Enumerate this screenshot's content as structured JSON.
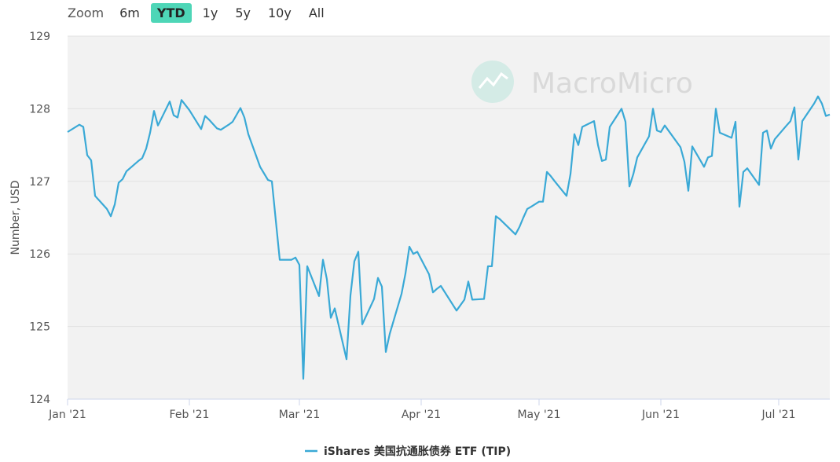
{
  "zoom": {
    "label": "Zoom",
    "buttons": [
      {
        "label": "6m",
        "active": false
      },
      {
        "label": "YTD",
        "active": true
      },
      {
        "label": "1y",
        "active": false
      },
      {
        "label": "5y",
        "active": false
      },
      {
        "label": "10y",
        "active": false
      },
      {
        "label": "All",
        "active": false
      }
    ]
  },
  "watermark": "MacroMicro",
  "colors": {
    "line": "#3aa9d6",
    "plot_bg": "#f2f2f2",
    "zoom_active": "#4ed6b7"
  },
  "chart_data": {
    "type": "line",
    "ylabel": "Number, USD",
    "ylim": [
      124,
      129
    ],
    "yticks": [
      124,
      125,
      126,
      127,
      128,
      129
    ],
    "xlim": [
      "2021-01-01",
      "2021-07-14"
    ],
    "xticks": [
      {
        "date": "2021-01-01",
        "label": "Jan '21"
      },
      {
        "date": "2021-02-01",
        "label": "Feb '21"
      },
      {
        "date": "2021-03-01",
        "label": "Mar '21"
      },
      {
        "date": "2021-04-01",
        "label": "Apr '21"
      },
      {
        "date": "2021-05-01",
        "label": "May '21"
      },
      {
        "date": "2021-06-01",
        "label": "Jun '21"
      },
      {
        "date": "2021-07-01",
        "label": "Jul '21"
      }
    ],
    "grid": true,
    "legend": "bottom-center",
    "series": [
      {
        "name": "iShares 美国抗通胀债券 ETF (TIP)",
        "color": "#3aa9d6",
        "points": [
          [
            "2021-01-01",
            127.68
          ],
          [
            "2021-01-04",
            127.78
          ],
          [
            "2021-01-05",
            127.75
          ],
          [
            "2021-01-06",
            127.36
          ],
          [
            "2021-01-07",
            127.29
          ],
          [
            "2021-01-08",
            126.8
          ],
          [
            "2021-01-11",
            126.62
          ],
          [
            "2021-01-12",
            126.52
          ],
          [
            "2021-01-13",
            126.68
          ],
          [
            "2021-01-14",
            126.98
          ],
          [
            "2021-01-15",
            127.03
          ],
          [
            "2021-01-16",
            127.14
          ],
          [
            "2021-01-19",
            127.28
          ],
          [
            "2021-01-20",
            127.32
          ],
          [
            "2021-01-21",
            127.45
          ],
          [
            "2021-01-22",
            127.67
          ],
          [
            "2021-01-23",
            127.97
          ],
          [
            "2021-01-24",
            127.77
          ],
          [
            "2021-01-27",
            128.1
          ],
          [
            "2021-01-28",
            127.91
          ],
          [
            "2021-01-29",
            127.88
          ],
          [
            "2021-01-30",
            128.12
          ],
          [
            "2021-02-01",
            127.98
          ],
          [
            "2021-02-04",
            127.72
          ],
          [
            "2021-02-05",
            127.9
          ],
          [
            "2021-02-06",
            127.85
          ],
          [
            "2021-02-08",
            127.73
          ],
          [
            "2021-02-09",
            127.71
          ],
          [
            "2021-02-11",
            127.78
          ],
          [
            "2021-02-12",
            127.82
          ],
          [
            "2021-02-14",
            128.01
          ],
          [
            "2021-02-15",
            127.88
          ],
          [
            "2021-02-16",
            127.65
          ],
          [
            "2021-02-19",
            127.2
          ],
          [
            "2021-02-21",
            127.02
          ],
          [
            "2021-02-22",
            127.0
          ],
          [
            "2021-02-24",
            125.92
          ],
          [
            "2021-02-27",
            125.92
          ],
          [
            "2021-02-28",
            125.95
          ],
          [
            "2021-03-01",
            125.85
          ],
          [
            "2021-03-02",
            124.28
          ],
          [
            "2021-03-03",
            125.83
          ],
          [
            "2021-03-06",
            125.42
          ],
          [
            "2021-03-07",
            125.92
          ],
          [
            "2021-03-08",
            125.65
          ],
          [
            "2021-03-09",
            125.12
          ],
          [
            "2021-03-10",
            125.25
          ],
          [
            "2021-03-13",
            124.55
          ],
          [
            "2021-03-14",
            125.43
          ],
          [
            "2021-03-15",
            125.9
          ],
          [
            "2021-03-16",
            126.03
          ],
          [
            "2021-03-17",
            125.03
          ],
          [
            "2021-03-20",
            125.38
          ],
          [
            "2021-03-21",
            125.67
          ],
          [
            "2021-03-22",
            125.55
          ],
          [
            "2021-03-23",
            124.65
          ],
          [
            "2021-03-24",
            124.9
          ],
          [
            "2021-03-27",
            125.45
          ],
          [
            "2021-03-28",
            125.73
          ],
          [
            "2021-03-29",
            126.1
          ],
          [
            "2021-03-30",
            126.0
          ],
          [
            "2021-03-31",
            126.03
          ],
          [
            "2021-04-03",
            125.72
          ],
          [
            "2021-04-04",
            125.47
          ],
          [
            "2021-04-05",
            125.52
          ],
          [
            "2021-04-06",
            125.56
          ],
          [
            "2021-04-10",
            125.22
          ],
          [
            "2021-04-12",
            125.37
          ],
          [
            "2021-04-13",
            125.62
          ],
          [
            "2021-04-14",
            125.37
          ],
          [
            "2021-04-17",
            125.38
          ],
          [
            "2021-04-18",
            125.83
          ],
          [
            "2021-04-19",
            125.83
          ],
          [
            "2021-04-20",
            126.52
          ],
          [
            "2021-04-21",
            126.48
          ],
          [
            "2021-04-25",
            126.27
          ],
          [
            "2021-04-26",
            126.37
          ],
          [
            "2021-04-27",
            126.5
          ],
          [
            "2021-04-28",
            126.62
          ],
          [
            "2021-04-29",
            126.65
          ],
          [
            "2021-05-01",
            126.72
          ],
          [
            "2021-05-02",
            126.72
          ],
          [
            "2021-05-03",
            127.13
          ],
          [
            "2021-05-04",
            127.07
          ],
          [
            "2021-05-05",
            127.0
          ],
          [
            "2021-05-08",
            126.8
          ],
          [
            "2021-05-09",
            127.1
          ],
          [
            "2021-05-10",
            127.65
          ],
          [
            "2021-05-11",
            127.5
          ],
          [
            "2021-05-12",
            127.75
          ],
          [
            "2021-05-15",
            127.83
          ],
          [
            "2021-05-16",
            127.5
          ],
          [
            "2021-05-17",
            127.28
          ],
          [
            "2021-05-18",
            127.3
          ],
          [
            "2021-05-19",
            127.75
          ],
          [
            "2021-05-22",
            128.0
          ],
          [
            "2021-05-23",
            127.82
          ],
          [
            "2021-05-24",
            126.93
          ],
          [
            "2021-05-25",
            127.1
          ],
          [
            "2021-05-26",
            127.33
          ],
          [
            "2021-05-29",
            127.62
          ],
          [
            "2021-05-30",
            128.0
          ],
          [
            "2021-05-31",
            127.7
          ],
          [
            "2021-06-01",
            127.68
          ],
          [
            "2021-06-02",
            127.77
          ],
          [
            "2021-06-06",
            127.47
          ],
          [
            "2021-06-07",
            127.27
          ],
          [
            "2021-06-08",
            126.87
          ],
          [
            "2021-06-09",
            127.48
          ],
          [
            "2021-06-12",
            127.2
          ],
          [
            "2021-06-13",
            127.33
          ],
          [
            "2021-06-14",
            127.35
          ],
          [
            "2021-06-15",
            128.0
          ],
          [
            "2021-06-16",
            127.67
          ],
          [
            "2021-06-19",
            127.6
          ],
          [
            "2021-06-20",
            127.82
          ],
          [
            "2021-06-21",
            126.65
          ],
          [
            "2021-06-22",
            127.13
          ],
          [
            "2021-06-23",
            127.18
          ],
          [
            "2021-06-26",
            126.95
          ],
          [
            "2021-06-27",
            127.67
          ],
          [
            "2021-06-28",
            127.7
          ],
          [
            "2021-06-29",
            127.45
          ],
          [
            "2021-06-30",
            127.58
          ],
          [
            "2021-07-03",
            127.77
          ],
          [
            "2021-07-04",
            127.83
          ],
          [
            "2021-07-05",
            128.02
          ],
          [
            "2021-07-06",
            127.3
          ],
          [
            "2021-07-07",
            127.83
          ],
          [
            "2021-07-10",
            128.07
          ],
          [
            "2021-07-11",
            128.17
          ],
          [
            "2021-07-12",
            128.07
          ],
          [
            "2021-07-13",
            127.9
          ],
          [
            "2021-07-14",
            127.92
          ]
        ]
      }
    ]
  }
}
